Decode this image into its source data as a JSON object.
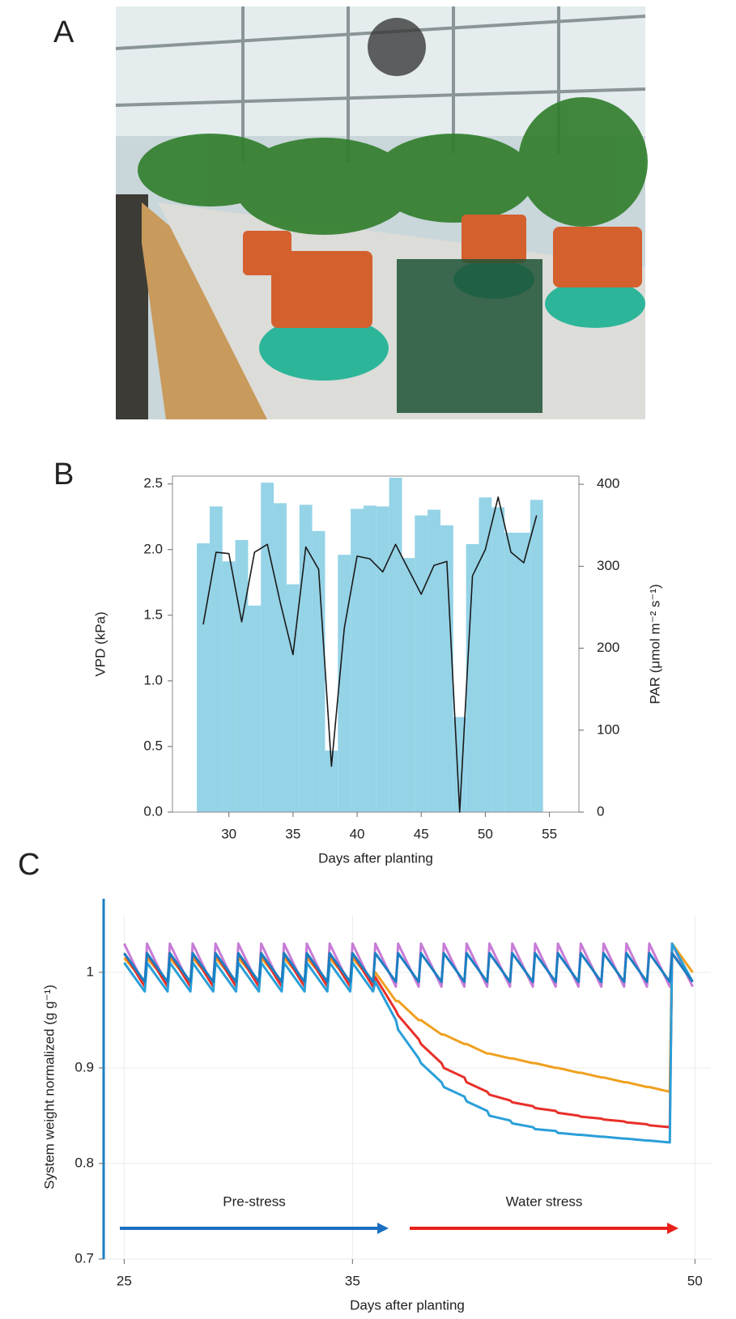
{
  "photo": {
    "panel_label": "A"
  },
  "chart_data": [
    {
      "type": "combo",
      "panel_label": "B",
      "x_label": "Days after planting",
      "y_label": "VPD (kPa)",
      "y2_label": "PAR (μmol m⁻² s⁻¹)",
      "x": [
        28,
        29,
        30,
        31,
        32,
        33,
        34,
        35,
        36,
        37,
        38,
        39,
        40,
        41,
        42,
        43,
        44,
        45,
        46,
        47,
        48,
        49,
        50,
        51,
        52,
        53,
        54
      ],
      "xlim": [
        25.6,
        57.3
      ],
      "xticks": [
        30,
        35,
        40,
        45,
        50,
        55
      ],
      "ylim": [
        0,
        2.56
      ],
      "yticks": [
        {
          "value": 0,
          "label": "0.0"
        },
        0.5,
        {
          "value": 1,
          "label": "1.0"
        },
        1.5,
        {
          "value": 2,
          "label": "2.0"
        },
        2.5
      ],
      "y2lim": [
        0,
        410
      ],
      "y2ticks": [
        0,
        100,
        200,
        300,
        400
      ],
      "series": [
        {
          "type": "bar",
          "axis": "y2",
          "color": "#95d3e7",
          "values": [
            328,
            373,
            306,
            332,
            252,
            402,
            377,
            278,
            375,
            343,
            75,
            314,
            370,
            374,
            373,
            408,
            310,
            362,
            369,
            350,
            116,
            327,
            384,
            372,
            341,
            341,
            381
          ]
        },
        {
          "type": "line",
          "axis": "y",
          "color": "#1a1a1a",
          "values": [
            1.43,
            1.98,
            1.97,
            1.45,
            1.98,
            2.04,
            1.6,
            1.2,
            2.02,
            1.85,
            0.35,
            1.4,
            1.95,
            1.93,
            1.83,
            2.04,
            1.85,
            1.66,
            1.88,
            1.91,
            0.0,
            1.8,
            2.0,
            2.4,
            1.98,
            1.9,
            2.26
          ]
        }
      ]
    },
    {
      "type": "line",
      "panel_label": "C",
      "x_label": "Days after planting",
      "y_label": "System weight normalized (g g⁻¹)",
      "annotations": [
        "Pre-stress",
        "Water stress"
      ],
      "x": [
        25,
        25.9,
        26,
        26.9,
        27,
        27.9,
        28,
        28.9,
        29,
        29.9,
        30,
        30.9,
        31,
        31.9,
        32,
        32.9,
        33,
        33.9,
        34,
        34.9,
        35,
        35.9,
        36,
        36.9,
        37,
        37.9,
        38,
        38.9,
        39,
        39.9,
        40,
        40.9,
        41,
        41.9,
        42,
        42.9,
        43,
        43.9,
        44,
        44.9,
        45,
        45.9,
        46,
        46.9,
        47,
        47.9,
        48,
        48.9,
        49,
        49.9
      ],
      "xlim": [
        24.1,
        50.7
      ],
      "xticks": [
        25,
        35,
        50
      ],
      "ylim": [
        0.7,
        1.06
      ],
      "yticks": [
        0.7,
        0.8,
        0.9,
        1
      ],
      "grid": true,
      "series": [
        {
          "color": "#c77cd6",
          "values": [
            1.03,
            0.985,
            1.03,
            0.985,
            1.03,
            0.985,
            1.03,
            0.985,
            1.03,
            0.985,
            1.03,
            0.985,
            1.03,
            0.985,
            1.03,
            0.985,
            1.03,
            0.985,
            1.03,
            0.985,
            1.03,
            0.985,
            1.03,
            0.985,
            1.03,
            0.985,
            1.03,
            0.985,
            1.03,
            0.985,
            1.03,
            0.985,
            1.03,
            0.985,
            1.03,
            0.985,
            1.03,
            0.985,
            1.03,
            0.985,
            1.03,
            0.985,
            1.03,
            0.985,
            1.03,
            0.985,
            1.03,
            0.985,
            1.03,
            0.985
          ]
        },
        {
          "color": "#f0a020",
          "values": [
            1.015,
            0.99,
            1.015,
            0.99,
            1.015,
            0.99,
            1.015,
            0.99,
            1.015,
            0.99,
            1.015,
            0.99,
            1.015,
            0.99,
            1.015,
            0.99,
            1.015,
            0.99,
            1.015,
            0.99,
            1.015,
            0.99,
            1.0,
            0.97,
            0.97,
            0.95,
            0.95,
            0.935,
            0.935,
            0.925,
            0.925,
            0.915,
            0.915,
            0.91,
            0.91,
            0.905,
            0.905,
            0.9,
            0.9,
            0.895,
            0.895,
            0.89,
            0.89,
            0.885,
            0.885,
            0.88,
            0.88,
            0.875,
            1.03,
            1.0
          ]
        },
        {
          "color": "#e8302a",
          "values": [
            1.02,
            0.985,
            1.02,
            0.985,
            1.02,
            0.985,
            1.02,
            0.985,
            1.02,
            0.985,
            1.02,
            0.985,
            1.02,
            0.985,
            1.02,
            0.985,
            1.02,
            0.985,
            1.02,
            0.985,
            1.02,
            0.985,
            0.995,
            0.96,
            0.955,
            0.93,
            0.925,
            0.905,
            0.9,
            0.89,
            0.885,
            0.875,
            0.872,
            0.866,
            0.864,
            0.86,
            0.858,
            0.855,
            0.853,
            0.85,
            0.849,
            0.847,
            0.846,
            0.844,
            0.843,
            0.841,
            0.84,
            0.838,
            1.02,
            0.99
          ]
        },
        {
          "color": "#2a9fd8",
          "values": [
            1.01,
            0.98,
            1.01,
            0.98,
            1.01,
            0.98,
            1.01,
            0.98,
            1.01,
            0.98,
            1.01,
            0.98,
            1.01,
            0.98,
            1.01,
            0.98,
            1.01,
            0.98,
            1.01,
            0.98,
            1.01,
            0.98,
            0.99,
            0.95,
            0.94,
            0.91,
            0.905,
            0.885,
            0.88,
            0.87,
            0.865,
            0.855,
            0.85,
            0.845,
            0.842,
            0.838,
            0.836,
            0.834,
            0.832,
            0.83,
            0.83,
            0.828,
            0.828,
            0.826,
            0.826,
            0.824,
            0.824,
            0.822,
            1.03,
            0.99
          ]
        },
        {
          "color": "#1a7fc1",
          "values": [
            1.02,
            0.99,
            1.02,
            0.99,
            1.02,
            0.99,
            1.02,
            0.99,
            1.02,
            0.99,
            1.02,
            0.99,
            1.02,
            0.99,
            1.02,
            0.99,
            1.02,
            0.99,
            1.02,
            0.99,
            1.02,
            0.99,
            1.02,
            0.99,
            1.02,
            0.99,
            1.02,
            0.99,
            1.02,
            0.99,
            1.02,
            0.99,
            1.02,
            0.99,
            1.02,
            0.99,
            1.02,
            0.99,
            1.02,
            0.99,
            1.02,
            0.99,
            1.02,
            0.99,
            1.02,
            0.99,
            1.02,
            0.99,
            1.02,
            0.99
          ]
        }
      ]
    }
  ]
}
